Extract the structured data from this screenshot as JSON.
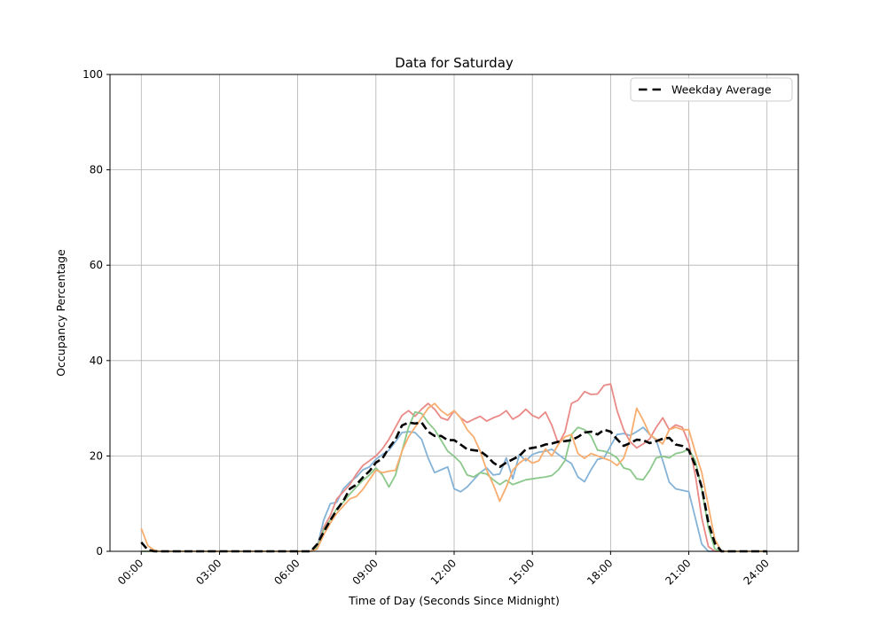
{
  "figure": {
    "title": "Data for Saturday",
    "x_axis": {
      "label": "Time of Day (Seconds Since Midnight)",
      "tick_hours": [
        0,
        3,
        6,
        9,
        12,
        15,
        18,
        21,
        24
      ],
      "tick_labels": [
        "00:00",
        "03:00",
        "06:00",
        "09:00",
        "12:00",
        "15:00",
        "18:00",
        "21:00",
        "24:00"
      ],
      "range_hours": [
        -1.2,
        25.2
      ]
    },
    "y_axis": {
      "label": "Occupancy Percentage",
      "ticks": [
        0,
        20,
        40,
        60,
        80,
        100
      ],
      "range": [
        0,
        100
      ]
    },
    "legend": {
      "label": "Weekday Average"
    },
    "grid_color": "#b0b0b0",
    "background": "#ffffff"
  },
  "chart_data": {
    "type": "line",
    "title": "Data for Saturday",
    "xlabel": "Time of Day (Seconds Since Midnight)",
    "ylabel": "Occupancy Percentage",
    "ylim": [
      0,
      100
    ],
    "grid": true,
    "legend_position": "upper right",
    "x_start_hour": 0,
    "x_step_hours": 0.25,
    "series": [
      {
        "name": "saturday-series-blue",
        "color": "#85b3d7",
        "width": 1.8,
        "dashed": false,
        "values": [
          0,
          0,
          0,
          0,
          0,
          0,
          0,
          0,
          0,
          0,
          0,
          0,
          0,
          0,
          0,
          0,
          0,
          0,
          0,
          0,
          0,
          0,
          0,
          0,
          0,
          0,
          0,
          1,
          6.6,
          10,
          10.3,
          13.1,
          14.5,
          15.6,
          17.1,
          17.7,
          19.3,
          20.3,
          21.2,
          23,
          24.9,
          25.1,
          24.9,
          23.5,
          19.6,
          16.5,
          17.1,
          17.7,
          13.1,
          12.5,
          13.5,
          15,
          16.5,
          17.5,
          16,
          16.2,
          19.6,
          15.2,
          20.3,
          19,
          20.3,
          20.8,
          21,
          21.4,
          20.3,
          19.3,
          18.4,
          15.6,
          14.6,
          17.1,
          19.3,
          19.6,
          22.1,
          24.5,
          24.7,
          24.3,
          25.1,
          26,
          24.5,
          23.3,
          19,
          14.5,
          13.1,
          12.8,
          12.5,
          7,
          1.5,
          0,
          0,
          0,
          0,
          0,
          0,
          0,
          0,
          0,
          0
        ]
      },
      {
        "name": "saturday-series-red",
        "color": "#e98a86",
        "width": 1.8,
        "dashed": false,
        "values": [
          0,
          0,
          0,
          0,
          0,
          0,
          0,
          0,
          0,
          0,
          0,
          0,
          0,
          0,
          0,
          0,
          0,
          0,
          0,
          0,
          0,
          0,
          0,
          0,
          0,
          0,
          0,
          1,
          5,
          7.5,
          11,
          12.5,
          14,
          16.2,
          18,
          19,
          20,
          21.5,
          23.5,
          26,
          28.5,
          29.5,
          28.3,
          29.8,
          31,
          29.8,
          28,
          27.5,
          29.5,
          28,
          27,
          27.7,
          28.3,
          27.3,
          28,
          28.5,
          29.5,
          27.7,
          28.5,
          29.8,
          28.5,
          27.9,
          29.2,
          26.4,
          22.5,
          25,
          31,
          31.7,
          33.5,
          32.9,
          33,
          34.8,
          35.1,
          29.5,
          25.5,
          23,
          21.7,
          22.5,
          23.6,
          26,
          28,
          25.5,
          26.5,
          26,
          22.7,
          16,
          7,
          1,
          0,
          0,
          0,
          0,
          0,
          0,
          0,
          0,
          0
        ]
      },
      {
        "name": "saturday-series-green",
        "color": "#8bc88b",
        "width": 1.8,
        "dashed": false,
        "values": [
          0,
          0,
          0,
          0,
          0,
          0,
          0,
          0,
          0,
          0,
          0,
          0,
          0,
          0,
          0,
          0,
          0,
          0,
          0,
          0,
          0,
          0,
          0,
          0,
          0,
          0,
          0,
          0.8,
          4.5,
          6.6,
          9,
          10.3,
          12,
          13.5,
          14.9,
          16,
          17.5,
          16,
          13.5,
          16,
          21,
          26,
          29.2,
          28.9,
          27,
          25.5,
          23.3,
          21,
          19.9,
          18.6,
          16,
          15.6,
          16.5,
          16.2,
          15,
          14,
          14.9,
          14,
          14.5,
          15,
          15.2,
          15.4,
          15.6,
          15.9,
          17.1,
          19,
          24.5,
          26,
          25.5,
          24.2,
          21.2,
          21,
          20.5,
          19.6,
          17.5,
          17.1,
          15.2,
          15,
          17,
          19.6,
          19.9,
          19.6,
          20.5,
          20.8,
          21.4,
          19,
          13,
          5,
          0.5,
          0,
          0,
          0,
          0,
          0,
          0,
          0,
          0
        ]
      },
      {
        "name": "saturday-series-orange",
        "color": "#f8ad6e",
        "width": 1.8,
        "dashed": false,
        "values": [
          4.8,
          1.2,
          0.2,
          0,
          0,
          0,
          0,
          0,
          0,
          0,
          0,
          0,
          0,
          0,
          0,
          0,
          0,
          0,
          0,
          0,
          0,
          0,
          0,
          0,
          0,
          0,
          0,
          0.5,
          3.5,
          5.9,
          8,
          9.5,
          11,
          11.5,
          13,
          15,
          17,
          16.5,
          16.8,
          17,
          21,
          24,
          26,
          28,
          30,
          31,
          29.5,
          28.5,
          29.5,
          28,
          25.5,
          24,
          21,
          17,
          14,
          10.5,
          13.5,
          17,
          18.5,
          19.5,
          18.5,
          19,
          21.5,
          20,
          22.5,
          24,
          24.5,
          20.5,
          19.5,
          20.5,
          20,
          19.5,
          19,
          18,
          19.5,
          23.5,
          30,
          27.5,
          24.5,
          23.5,
          22.5,
          25.5,
          26,
          25.5,
          25.5,
          20.8,
          16.5,
          9.5,
          2.5,
          0,
          0,
          0,
          0,
          0,
          0,
          0,
          0
        ]
      },
      {
        "name": "weekday-average",
        "label": "Weekday Average",
        "color": "#000000",
        "width": 2.6,
        "dashed": true,
        "values": [
          1.9,
          0.3,
          0,
          0,
          0,
          0,
          0,
          0,
          0,
          0,
          0,
          0,
          0,
          0,
          0,
          0,
          0,
          0,
          0,
          0,
          0,
          0,
          0,
          0,
          0,
          0,
          0,
          1.5,
          4.1,
          6.5,
          8.7,
          10.6,
          13.1,
          14,
          15.5,
          16.8,
          18.6,
          19.5,
          21.7,
          23.5,
          26.4,
          27,
          26.8,
          27,
          25.1,
          24.2,
          24.2,
          23.3,
          23.3,
          22.4,
          21.4,
          21.2,
          21,
          20,
          18.6,
          17.7,
          18.6,
          19.3,
          20,
          21.4,
          21.7,
          21.9,
          22.4,
          22.6,
          23,
          23.1,
          23.3,
          24,
          24.9,
          25.1,
          24.5,
          25.5,
          25.1,
          23.5,
          22.1,
          22.7,
          23.4,
          23.3,
          22.7,
          23.1,
          23.6,
          23.8,
          22.4,
          22.1,
          21.2,
          18,
          13.4,
          6,
          1.7,
          0,
          0,
          0,
          0,
          0,
          0,
          0,
          0
        ]
      }
    ]
  }
}
